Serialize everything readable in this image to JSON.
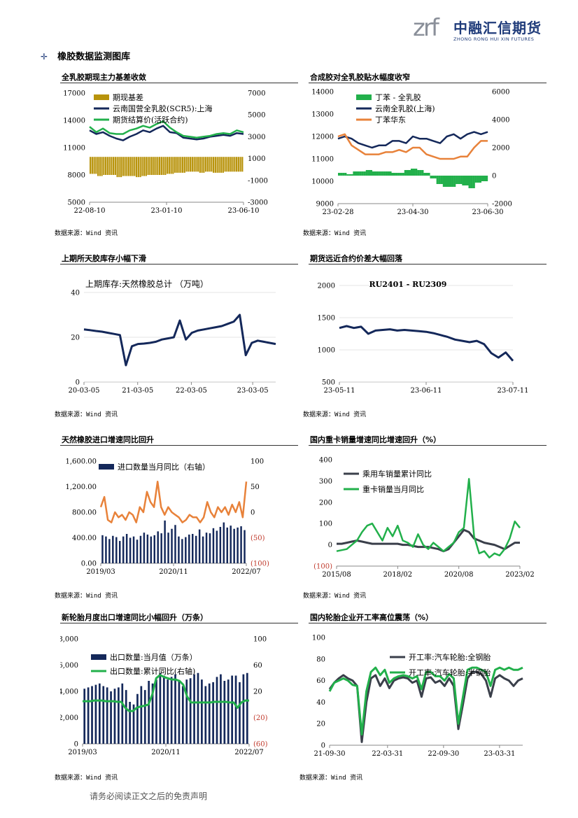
{
  "header": {
    "logo_mark": "zrf",
    "company_cn": "中融汇信期货",
    "company_en": "ZHONG RONG HUI XIN FUTURES"
  },
  "section_title": "橡胶数据监测图库",
  "footer": "请务必阅读正文之后的免责声明",
  "colors": {
    "navy": "#14285a",
    "green": "#22b04b",
    "orange": "#e8823a",
    "gold": "#b8930b",
    "dark": "#3a3f4a",
    "red": "#c0392b"
  },
  "panels": [
    {
      "title": "全乳胶期现主力基差收敛",
      "source": "数据来源：Wind 资讯"
    },
    {
      "title": "合成胶对全乳胶贴水幅度收窄",
      "source": "数据来源：Wind 资讯"
    },
    {
      "title": "上期所天胶库存小幅下滑",
      "source": "数据来源：Wind 资讯"
    },
    {
      "title": "期货远近合约价差大幅回落",
      "source": "数据来源：Wind 资讯"
    },
    {
      "title": "天然橡胶进口增速同比回升",
      "source": "数据来源：Wind 资讯"
    },
    {
      "title": "国内重卡销量增速同比增速回升（%）",
      "source": "数据来源：Wind 资讯"
    },
    {
      "title": "新轮胎月度出口增速同比小幅回升（万条）",
      "source": "数据来源：Wind 资讯"
    },
    {
      "title": "国内轮胎企业开工率高位震荡（%）",
      "source": "数据来源：Wind 资讯"
    }
  ],
  "chart_data": [
    {
      "type": "line",
      "legend": [
        "期现基差",
        "云南国营全乳胶(SCR5):上海",
        "期货结算价(活跃合约)"
      ],
      "x_ticks": [
        "22-08-10",
        "23-01-10",
        "23-06-10"
      ],
      "y_left_ticks": [
        "5000",
        "8000",
        "11000",
        "14000",
        "17000"
      ],
      "y_right_ticks": [
        "-3000",
        "-1000",
        "1000",
        "3000",
        "5000",
        "7000"
      ],
      "ylim_left": [
        5000,
        17000
      ],
      "ylim_right": [
        -3000,
        7000
      ],
      "series": [
        {
          "name": "云南国营全乳胶(SCR5):上海",
          "axis": "left",
          "values": [
            12900,
            12500,
            12700,
            12300,
            12000,
            11800,
            12200,
            12500,
            12900,
            12700,
            13100,
            13400,
            12700,
            12600,
            12100,
            12000,
            11900,
            12000,
            12200,
            12300,
            12400,
            12300,
            12600,
            12500
          ]
        },
        {
          "name": "期货结算价(活跃合约)",
          "axis": "left",
          "values": [
            13300,
            12700,
            13100,
            12600,
            12500,
            12500,
            12900,
            13100,
            13400,
            13200,
            13600,
            13900,
            13200,
            12700,
            12300,
            12200,
            12100,
            12200,
            12300,
            12500,
            12600,
            12500,
            12900,
            12700
          ]
        },
        {
          "name": "期现基差",
          "axis": "right",
          "values": [
            -400,
            -600,
            -500,
            -500,
            -700,
            -600,
            -600,
            -700,
            -600,
            -500,
            -500,
            -500,
            -400,
            -300,
            -300,
            -200,
            -200,
            -300,
            -200,
            -300,
            -300,
            -200,
            -200,
            -200
          ]
        }
      ]
    },
    {
      "type": "line",
      "legend": [
        "丁苯 - 全乳胶",
        "云南全乳胶(上海)",
        "丁苯华东"
      ],
      "x_ticks": [
        "23-02-28",
        "23-04-30",
        "23-06-30"
      ],
      "y_left_ticks": [
        "9000",
        "10000",
        "11000",
        "12000",
        "13000",
        "14000"
      ],
      "y_right_ticks": [
        "-2000",
        "0",
        "2000",
        "4000",
        "6000"
      ],
      "ylim_left": [
        9000,
        14000
      ],
      "ylim_right": [
        -2000,
        6000
      ],
      "series": [
        {
          "name": "云南全乳胶(上海)",
          "axis": "left",
          "values": [
            11900,
            12000,
            11900,
            11700,
            11600,
            11500,
            11600,
            11600,
            11800,
            11800,
            11700,
            12000,
            11900,
            11900,
            11800,
            11700,
            12000,
            12100,
            11900,
            12100,
            12200,
            12100,
            12200
          ]
        },
        {
          "name": "丁苯华东",
          "axis": "left",
          "values": [
            12000,
            12100,
            11600,
            11400,
            11200,
            11200,
            11200,
            11300,
            11300,
            11400,
            11300,
            11500,
            11500,
            11200,
            11100,
            11000,
            11000,
            11000,
            11100,
            11100,
            11500,
            11800,
            11800
          ]
        },
        {
          "name": "丁苯 - 全乳胶",
          "axis": "right",
          "values": [
            200,
            100,
            300,
            300,
            400,
            300,
            300,
            300,
            200,
            200,
            400,
            500,
            400,
            200,
            -200,
            -600,
            -800,
            -800,
            -600,
            -700,
            -900,
            -500,
            -400
          ]
        }
      ]
    },
    {
      "type": "line",
      "title": "上期库存:天然橡胶总计  （万吨）",
      "x_ticks": [
        "20-03-05",
        "21-03-05",
        "22-03-05",
        "23-03-05"
      ],
      "y_ticks": [
        "0",
        "20",
        "40"
      ],
      "ylim": [
        0,
        40
      ],
      "series": [
        {
          "name": "上期库存:天然橡胶总计",
          "values": [
            23.5,
            23.2,
            22.8,
            22.5,
            22.0,
            21.5,
            21.0,
            7.5,
            16.0,
            17.0,
            17.2,
            17.5,
            18.0,
            19.0,
            19.5,
            20.0,
            27.5,
            19.0,
            22.0,
            23.0,
            23.5,
            24.0,
            24.5,
            25.0,
            26.0,
            27.0,
            30.0,
            12.0,
            17.5,
            18.5,
            18.0,
            17.5,
            17.0
          ]
        }
      ]
    },
    {
      "type": "line",
      "title": "RU2401 - RU2309",
      "x_ticks": [
        "23-05-11",
        "23-06-11",
        "23-07-11"
      ],
      "y_ticks": [
        "500",
        "1000",
        "1500",
        "2000"
      ],
      "ylim": [
        500,
        2000
      ],
      "series": [
        {
          "name": "RU2401 - RU2309",
          "values": [
            1340,
            1370,
            1340,
            1360,
            1250,
            1300,
            1310,
            1320,
            1300,
            1310,
            1300,
            1290,
            1280,
            1260,
            1230,
            1200,
            1160,
            1140,
            1120,
            1140,
            1090,
            950,
            880,
            960,
            830
          ]
        }
      ]
    },
    {
      "type": "bar",
      "legend": [
        "",
        "进口数量当月同比（右轴）"
      ],
      "x_ticks": [
        "2019/03",
        "2020/11",
        "2022/07"
      ],
      "y_left_ticks": [
        "0.00",
        "400.00",
        "800.00",
        "1,200.00",
        "1,600.00"
      ],
      "y_right_ticks": [
        "(100)",
        "(50)",
        "0",
        "50",
        "100"
      ],
      "ylim_left": [
        0,
        1600
      ],
      "ylim_right": [
        -100,
        100
      ],
      "series": [
        {
          "name": "进口数量当月",
          "axis": "left",
          "values": [
            440,
            420,
            380,
            430,
            410,
            350,
            420,
            460,
            400,
            420,
            370,
            430,
            480,
            450,
            420,
            440,
            500,
            470,
            670,
            480,
            540,
            600,
            420,
            380,
            410,
            450,
            460,
            430,
            530,
            420,
            480,
            470,
            550,
            510,
            570,
            640,
            560,
            590,
            540,
            560,
            580,
            520
          ]
        },
        {
          "name": "进口数量当月同比（右轴）",
          "axis": "right",
          "values": [
            10,
            30,
            -15,
            -20,
            0,
            -10,
            -5,
            -15,
            0,
            -5,
            -20,
            10,
            0,
            40,
            20,
            10,
            60,
            10,
            -5,
            10,
            0,
            -5,
            -10,
            -20,
            -15,
            -5,
            -10,
            -10,
            -20,
            -10,
            20,
            0,
            -10,
            10,
            0,
            10,
            -5,
            15,
            0,
            20,
            -10,
            60
          ]
        }
      ]
    },
    {
      "type": "line",
      "legend": [
        "乘用车销量累计同比",
        "重卡销量当月同比"
      ],
      "x_ticks": [
        "2015/08",
        "2018/02",
        "2020/08",
        "2023/02"
      ],
      "y_ticks": [
        "(100)",
        "0",
        "100",
        "200",
        "300",
        "400"
      ],
      "ylim": [
        -100,
        400
      ],
      "series": [
        {
          "name": "乘用车销量累计同比",
          "values": [
            5,
            5,
            10,
            15,
            20,
            15,
            10,
            5,
            5,
            5,
            5,
            5,
            5,
            0,
            0,
            -5,
            -10,
            -10,
            -10,
            -15,
            -20,
            -30,
            -20,
            10,
            40,
            70,
            60,
            30,
            20,
            10,
            5,
            0,
            -10,
            -20,
            -5,
            10,
            10
          ]
        },
        {
          "name": "重卡销量当月同比",
          "values": [
            -30,
            -25,
            -20,
            0,
            20,
            60,
            90,
            100,
            60,
            20,
            80,
            40,
            90,
            20,
            10,
            -10,
            50,
            0,
            -20,
            10,
            -10,
            -30,
            -10,
            10,
            60,
            80,
            310,
            40,
            -40,
            -30,
            -60,
            -40,
            -50,
            -20,
            30,
            110,
            80
          ]
        }
      ]
    },
    {
      "type": "bar",
      "legend": [
        "出口数量:当月值（万条）",
        "出口数量:累计同比(右轴)"
      ],
      "x_ticks": [
        "2019/03",
        "2020/11",
        "2022/07"
      ],
      "y_left_ticks": [
        "0",
        "2,000",
        "4,000",
        "6,000",
        "8,000"
      ],
      "y_right_ticks": [
        "(60)",
        "(20)",
        "20",
        "60",
        "100"
      ],
      "ylim_left": [
        0,
        8000
      ],
      "ylim_right": [
        -60,
        100
      ],
      "series": [
        {
          "name": "出口数量:当月值（万条）",
          "axis": "left",
          "values": [
            4200,
            4300,
            4400,
            4500,
            4600,
            4400,
            4300,
            4000,
            4200,
            4300,
            4600,
            4100,
            3200,
            3000,
            3800,
            4400,
            4100,
            4800,
            4600,
            4900,
            5400,
            5200,
            4900,
            5100,
            5300,
            4800,
            4400,
            4900,
            5000,
            5300,
            5400,
            4900,
            4400,
            4600,
            4700,
            5100,
            5300,
            4800,
            4900,
            5200,
            5200,
            4700,
            5300,
            5400
          ]
        },
        {
          "name": "出口数量:累计同比(右轴)",
          "axis": "right",
          "values": [
            5,
            5,
            5,
            6,
            6,
            6,
            5,
            5,
            5,
            4,
            4,
            -5,
            -10,
            -10,
            -5,
            -3,
            -2,
            0,
            15,
            40,
            45,
            42,
            40,
            38,
            38,
            36,
            30,
            12,
            3,
            3,
            3,
            3,
            3,
            3,
            4,
            4,
            4,
            4,
            3,
            3,
            -5,
            3,
            6,
            6
          ]
        }
      ]
    },
    {
      "type": "line",
      "legend": [
        "开工率:汽车轮胎:全钢胎",
        "开工率:汽车轮胎:半钢胎"
      ],
      "x_ticks": [
        "21-09-30",
        "22-03-31",
        "22-09-30",
        "23-03-31"
      ],
      "y_ticks": [
        "0",
        "20",
        "40",
        "60",
        "80",
        "100"
      ],
      "ylim": [
        0,
        100
      ],
      "series": [
        {
          "name": "开工率:汽车轮胎:全钢胎",
          "values": [
            52,
            58,
            62,
            65,
            62,
            60,
            55,
            3,
            40,
            62,
            65,
            55,
            62,
            53,
            60,
            62,
            63,
            62,
            58,
            60,
            45,
            62,
            63,
            58,
            60,
            55,
            62,
            55,
            15,
            38,
            62,
            68,
            68,
            66,
            60,
            45,
            62,
            65,
            62,
            60,
            55,
            60,
            62
          ]
        },
        {
          "name": "开工率:汽车轮胎:半钢胎",
          "values": [
            50,
            58,
            60,
            62,
            60,
            56,
            55,
            10,
            50,
            68,
            72,
            65,
            70,
            58,
            62,
            64,
            65,
            64,
            62,
            64,
            52,
            68,
            68,
            64,
            64,
            60,
            66,
            62,
            20,
            45,
            70,
            72,
            72,
            70,
            68,
            55,
            70,
            72,
            70,
            72,
            70,
            70,
            72
          ]
        }
      ]
    }
  ]
}
